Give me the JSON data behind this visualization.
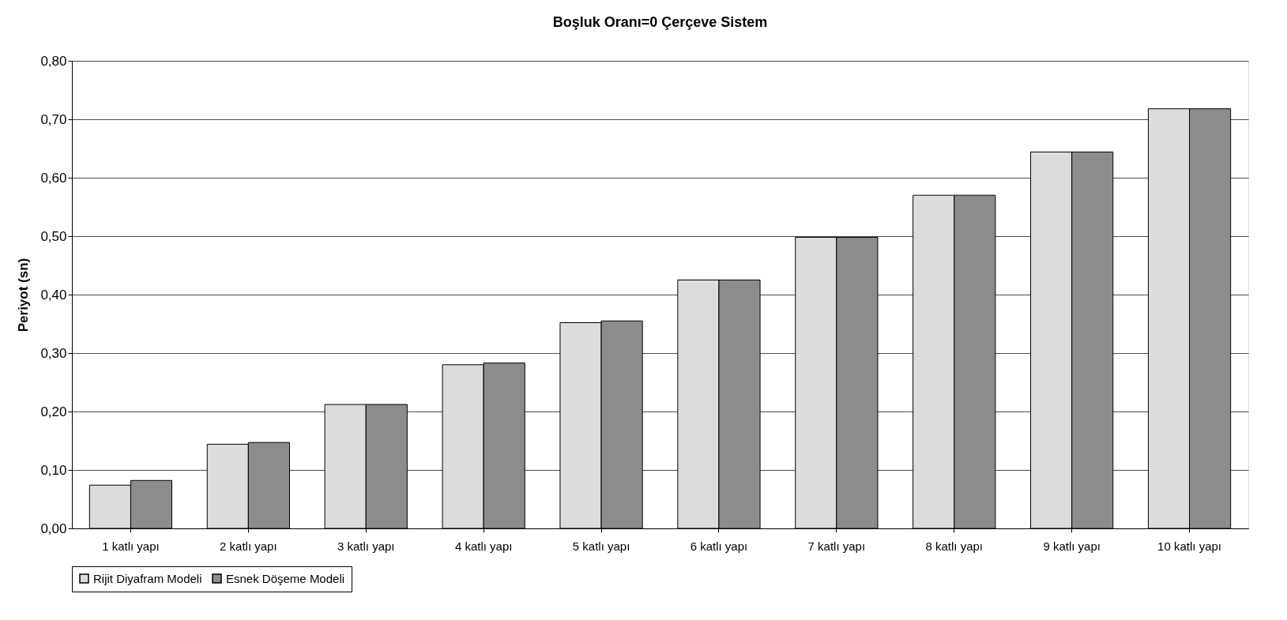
{
  "chart_data": {
    "type": "bar",
    "title": "Boşluk Oranı=0 Çerçeve Sistem",
    "ylabel": "Periyot (sn)",
    "categories": [
      "1 katlı yapı",
      "2 katlı yapı",
      "3 katlı yapı",
      "4 katlı yapı",
      "5 katlı yapı",
      "6 katlı yapı",
      "7 katlı yapı",
      "8 katlı yapı",
      "9 katlı yapı",
      "10 katlı yapı"
    ],
    "series": [
      {
        "name": "Rijit Diyafram Modeli",
        "color": "#dcdcdc",
        "values": [
          0.074,
          0.144,
          0.212,
          0.28,
          0.352,
          0.425,
          0.498,
          0.57,
          0.644,
          0.718
        ]
      },
      {
        "name": "Esnek Döşeme Modeli",
        "color": "#8c8c8c",
        "values": [
          0.082,
          0.147,
          0.212,
          0.283,
          0.355,
          0.425,
          0.498,
          0.57,
          0.644,
          0.718
        ]
      }
    ],
    "ylim": [
      0,
      0.8
    ],
    "yticks": [
      {
        "value": 0,
        "label": "0,00"
      },
      {
        "value": 0.1,
        "label": "0,10"
      },
      {
        "value": 0.2,
        "label": "0,20"
      },
      {
        "value": 0.3,
        "label": "0,30"
      },
      {
        "value": 0.4,
        "label": "0,40"
      },
      {
        "value": 0.5,
        "label": "0,50"
      },
      {
        "value": 0.6,
        "label": "0,60"
      },
      {
        "value": 0.7,
        "label": "0,70"
      },
      {
        "value": 0.8,
        "label": "0,80"
      }
    ],
    "grid": "y",
    "legend": "bottom"
  }
}
